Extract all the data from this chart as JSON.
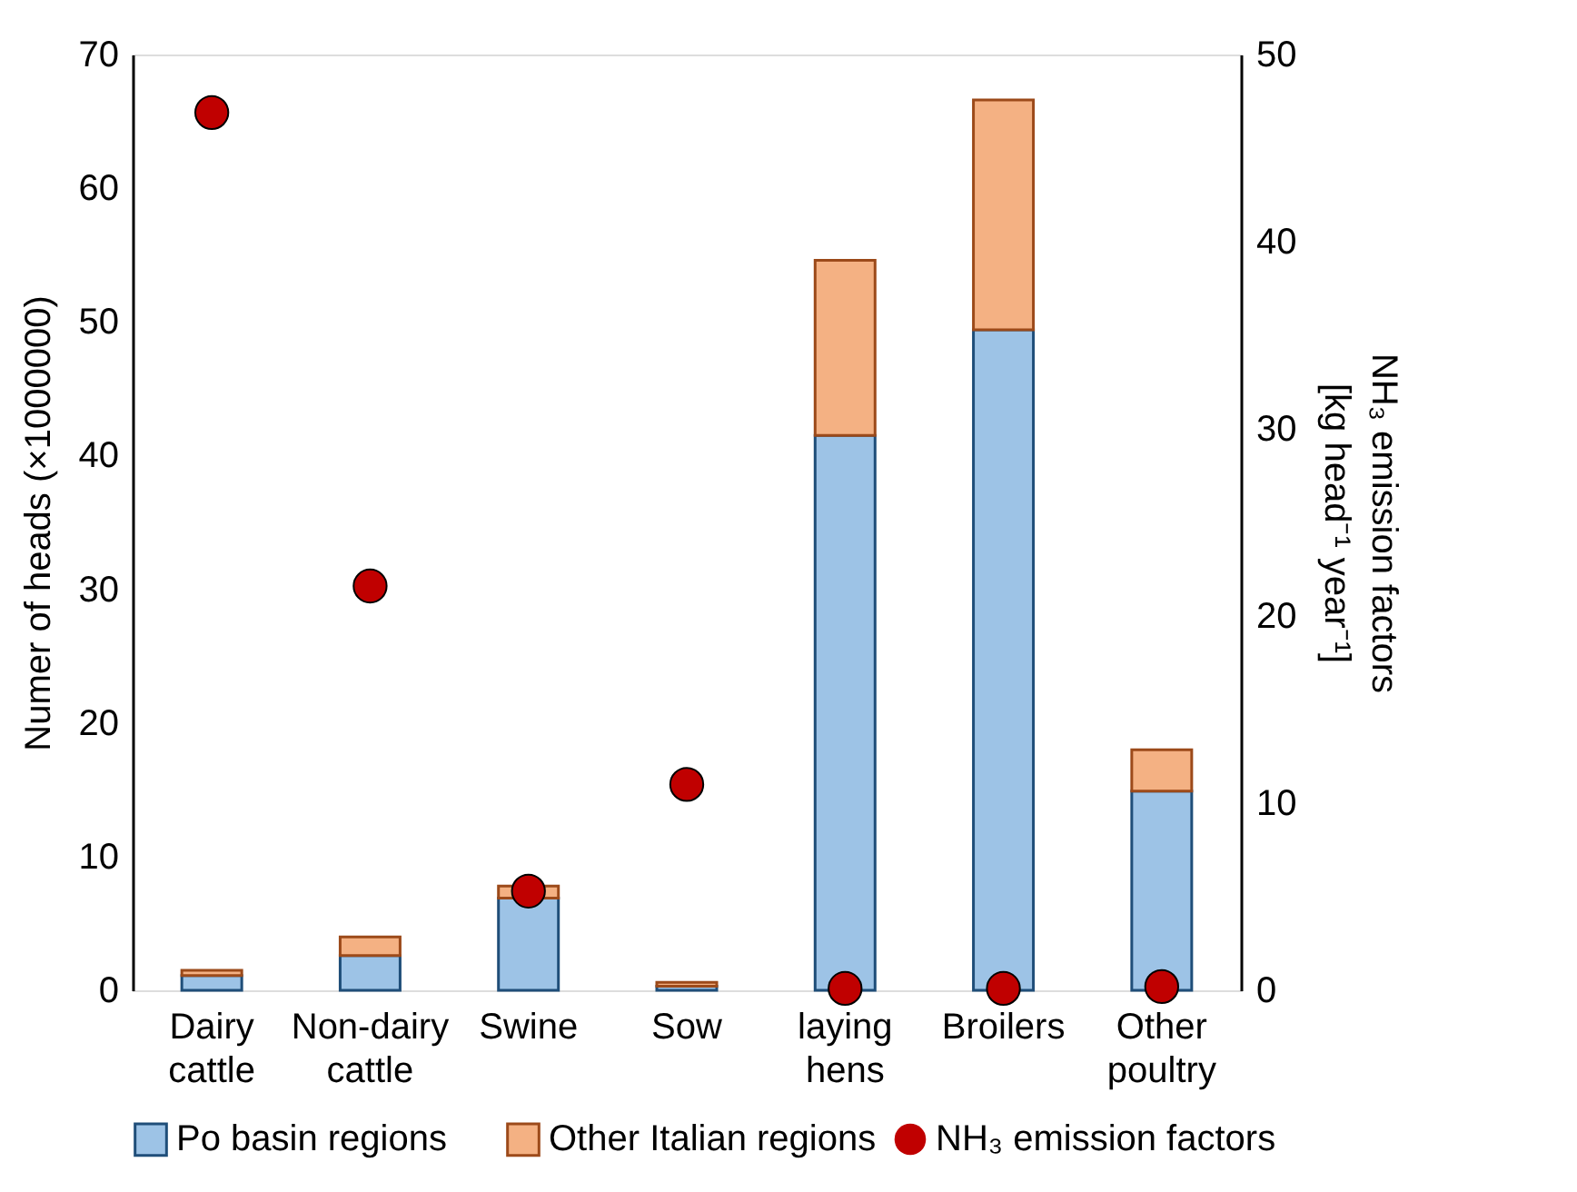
{
  "chart_data": {
    "type": "bar",
    "stacked": true,
    "categories": [
      "Dairy cattle",
      "Non-dairy cattle",
      "Swine",
      "Sow",
      "laying hens",
      "Broilers",
      "Other poultry"
    ],
    "ylabel": "Numer of heads (×1000000)",
    "y2label": "NH₃ emission factors\n[kg head⁻¹ year⁻¹]",
    "ylim": [
      0,
      70
    ],
    "yticks": [
      0,
      10,
      20,
      30,
      40,
      50,
      60,
      70
    ],
    "y2lim": [
      0,
      50
    ],
    "y2ticks": [
      0,
      10,
      20,
      30,
      40,
      50
    ],
    "grid": false,
    "legend": "bottom",
    "series": [
      {
        "name": "Po basin regions",
        "color": "#9dc3e6",
        "values": [
          1.1,
          2.6,
          6.9,
          0.3,
          41.5,
          49.4,
          14.9
        ]
      },
      {
        "name": "Other Italian regions",
        "color": "#f4b183",
        "values": [
          0.4,
          1.4,
          0.9,
          0.3,
          13.1,
          17.2,
          3.1
        ]
      },
      {
        "name": "NH₃ emission factors",
        "color": "#c00000",
        "type": "scatter",
        "axis": "y2",
        "marker": "circle",
        "values": [
          46.9,
          21.6,
          5.3,
          11.0,
          0.1,
          0.1,
          0.2
        ]
      }
    ]
  }
}
